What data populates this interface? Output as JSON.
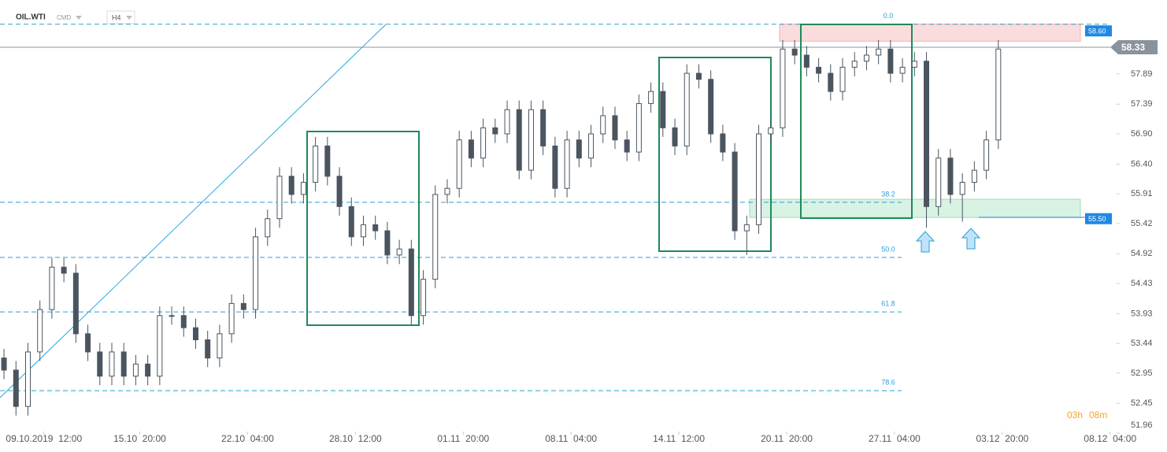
{
  "header": {
    "symbol": "OIL.WTI",
    "market": "CMD",
    "interval": "H4"
  },
  "timer": {
    "hours": "03h",
    "minutes": "08m"
  },
  "chart_data": {
    "type": "candlestick",
    "up_color": "#ffffff",
    "down_color": "#4a5560",
    "wick_color": "#4a5560",
    "x": [
      0,
      3,
      6,
      9,
      12,
      15,
      18,
      21,
      24,
      27,
      30,
      33,
      36,
      39,
      42,
      45,
      48,
      51,
      54,
      57,
      60,
      63,
      66,
      69,
      72,
      75,
      78,
      81,
      84,
      87,
      90,
      93,
      96,
      99,
      102,
      105,
      108,
      111,
      114,
      117,
      120,
      123,
      126,
      129,
      132,
      135,
      138,
      141,
      144,
      147,
      150,
      153,
      156,
      159,
      162,
      165,
      168,
      171,
      174,
      177,
      180,
      183,
      186,
      189,
      192,
      195,
      198,
      201,
      204,
      207,
      210,
      213,
      216,
      219,
      222,
      225,
      228,
      231,
      234,
      237,
      240,
      243,
      246,
      249
    ],
    "open": [
      53.2,
      53.0,
      52.4,
      53.3,
      54.0,
      54.7,
      54.6,
      53.6,
      53.3,
      52.9,
      53.3,
      52.9,
      53.1,
      52.9,
      53.9,
      53.9,
      53.7,
      53.5,
      53.2,
      53.6,
      54.1,
      54.0,
      55.2,
      55.5,
      56.2,
      55.9,
      56.1,
      56.7,
      56.2,
      55.7,
      55.2,
      55.4,
      55.3,
      54.9,
      55.0,
      53.9,
      54.5,
      55.9,
      56.0,
      56.8,
      56.5,
      57.0,
      56.9,
      57.3,
      56.3,
      57.3,
      56.7,
      56.0,
      56.8,
      56.5,
      56.9,
      57.2,
      56.8,
      56.6,
      57.4,
      57.6,
      57.0,
      56.7,
      57.9,
      57.8,
      56.9,
      56.6,
      55.3,
      55.4,
      56.9,
      57.0,
      58.3,
      58.2,
      58.0,
      57.9,
      57.6,
      58.0,
      58.1,
      58.2,
      58.3,
      57.9,
      58.0,
      58.1,
      55.7,
      56.5,
      55.9,
      56.1,
      56.3,
      56.8
    ],
    "high": [
      53.35,
      53.15,
      53.45,
      54.15,
      54.85,
      54.85,
      54.75,
      53.75,
      53.45,
      53.45,
      53.45,
      53.25,
      53.25,
      54.05,
      54.05,
      54.05,
      53.85,
      53.65,
      53.75,
      54.25,
      54.25,
      55.35,
      55.65,
      56.35,
      56.35,
      56.25,
      56.85,
      56.85,
      56.35,
      55.85,
      55.55,
      55.55,
      55.45,
      55.15,
      55.15,
      54.65,
      56.05,
      56.15,
      56.95,
      56.95,
      57.15,
      57.15,
      57.45,
      57.45,
      57.45,
      57.45,
      56.85,
      56.95,
      56.95,
      57.05,
      57.35,
      57.35,
      56.95,
      57.55,
      57.75,
      57.75,
      57.15,
      58.05,
      58.05,
      57.95,
      57.05,
      56.75,
      55.55,
      57.05,
      57.15,
      58.45,
      58.45,
      58.35,
      58.15,
      58.05,
      58.15,
      58.25,
      58.35,
      58.45,
      58.45,
      58.15,
      58.25,
      58.25,
      56.65,
      56.65,
      56.25,
      56.45,
      56.95,
      58.45
    ],
    "low": [
      52.85,
      52.25,
      52.25,
      53.15,
      53.85,
      54.45,
      53.45,
      53.15,
      52.75,
      52.75,
      52.75,
      52.75,
      52.75,
      52.75,
      53.75,
      53.55,
      53.35,
      53.05,
      53.05,
      53.45,
      53.85,
      53.85,
      55.05,
      55.35,
      55.75,
      55.75,
      55.95,
      56.05,
      55.55,
      55.05,
      55.05,
      55.15,
      54.75,
      54.75,
      53.75,
      53.75,
      54.35,
      55.75,
      55.85,
      56.35,
      56.35,
      56.75,
      56.75,
      56.15,
      56.15,
      56.55,
      55.85,
      55.85,
      56.35,
      56.35,
      56.75,
      56.65,
      56.45,
      56.45,
      57.25,
      56.85,
      56.55,
      56.55,
      57.65,
      56.75,
      56.45,
      55.15,
      54.9,
      55.25,
      56.75,
      56.85,
      58.05,
      57.85,
      57.75,
      57.45,
      57.45,
      57.85,
      57.95,
      58.05,
      57.75,
      57.75,
      57.85,
      55.35,
      55.55,
      55.75,
      55.45,
      55.95,
      56.15,
      56.65
    ],
    "close": [
      53.0,
      52.4,
      53.3,
      54.0,
      54.7,
      54.6,
      53.6,
      53.3,
      52.9,
      53.3,
      52.9,
      53.1,
      52.9,
      53.9,
      53.9,
      53.7,
      53.5,
      53.2,
      53.6,
      54.1,
      54.0,
      55.2,
      55.5,
      56.2,
      55.9,
      56.1,
      56.7,
      56.2,
      55.7,
      55.2,
      55.4,
      55.3,
      54.9,
      55.0,
      53.9,
      54.5,
      55.9,
      56.0,
      56.8,
      56.5,
      57.0,
      56.9,
      57.3,
      56.3,
      57.3,
      56.7,
      56.0,
      56.8,
      56.5,
      56.9,
      57.2,
      56.8,
      56.6,
      57.4,
      57.6,
      57.0,
      56.7,
      57.9,
      57.8,
      56.9,
      56.6,
      55.3,
      55.4,
      56.9,
      57.0,
      58.3,
      58.2,
      58.0,
      57.9,
      57.6,
      58.0,
      58.1,
      58.2,
      58.3,
      57.9,
      58.0,
      58.1,
      55.7,
      56.5,
      55.9,
      56.1,
      56.3,
      56.8,
      58.3
    ],
    "xlim": [
      -1,
      280
    ],
    "xticks": [
      {
        "value": 10,
        "label": "09.10.2019  12:00"
      },
      {
        "value": 34,
        "label": "15.10  20:00"
      },
      {
        "value": 61,
        "label": "22.10  04:00"
      },
      {
        "value": 88,
        "label": "28.10  12:00"
      },
      {
        "value": 115,
        "label": "01.11  20:00"
      },
      {
        "value": 142,
        "label": "08.11  04:00"
      },
      {
        "value": 169,
        "label": "14.11  12:00"
      },
      {
        "value": 196,
        "label": "20.11  20:00"
      },
      {
        "value": 223,
        "label": "27.11  04:00"
      },
      {
        "value": 250,
        "label": "03.12  20:00"
      },
      {
        "value": 277,
        "label": "08.12  04:00"
      }
    ],
    "ylim": [
      51.96,
      59.11
    ],
    "yticks": [
      57.89,
      57.39,
      {
        "value": 56.9,
        "label": "56.90"
      },
      {
        "value": 56.4,
        "label": "56.40"
      },
      55.91,
      55.42,
      54.92,
      54.43,
      53.93,
      53.44,
      52.95,
      52.45,
      51.96
    ],
    "fib_levels": [
      {
        "label": "0.0",
        "value": 58.71
      },
      {
        "label": "38.2",
        "value": 55.77
      },
      {
        "label": "50.0",
        "value": 54.86
      },
      {
        "label": "61.8",
        "value": 53.96
      },
      {
        "label": "78.6",
        "value": 52.66
      }
    ],
    "zones": [
      {
        "from": 58.43,
        "to": 58.71,
        "color": "#fbdcdc"
      },
      {
        "from": 55.52,
        "to": 55.82,
        "color": "#d8f2e3"
      }
    ],
    "price_tags": [
      {
        "value": 58.6,
        "label": "58.60",
        "color": "#1e88e5"
      },
      {
        "value": 55.5,
        "label": "55.50",
        "color": "#1e88e5"
      }
    ],
    "current_price": {
      "value": 58.33,
      "label": "58.33",
      "color": "#8a939b"
    }
  }
}
